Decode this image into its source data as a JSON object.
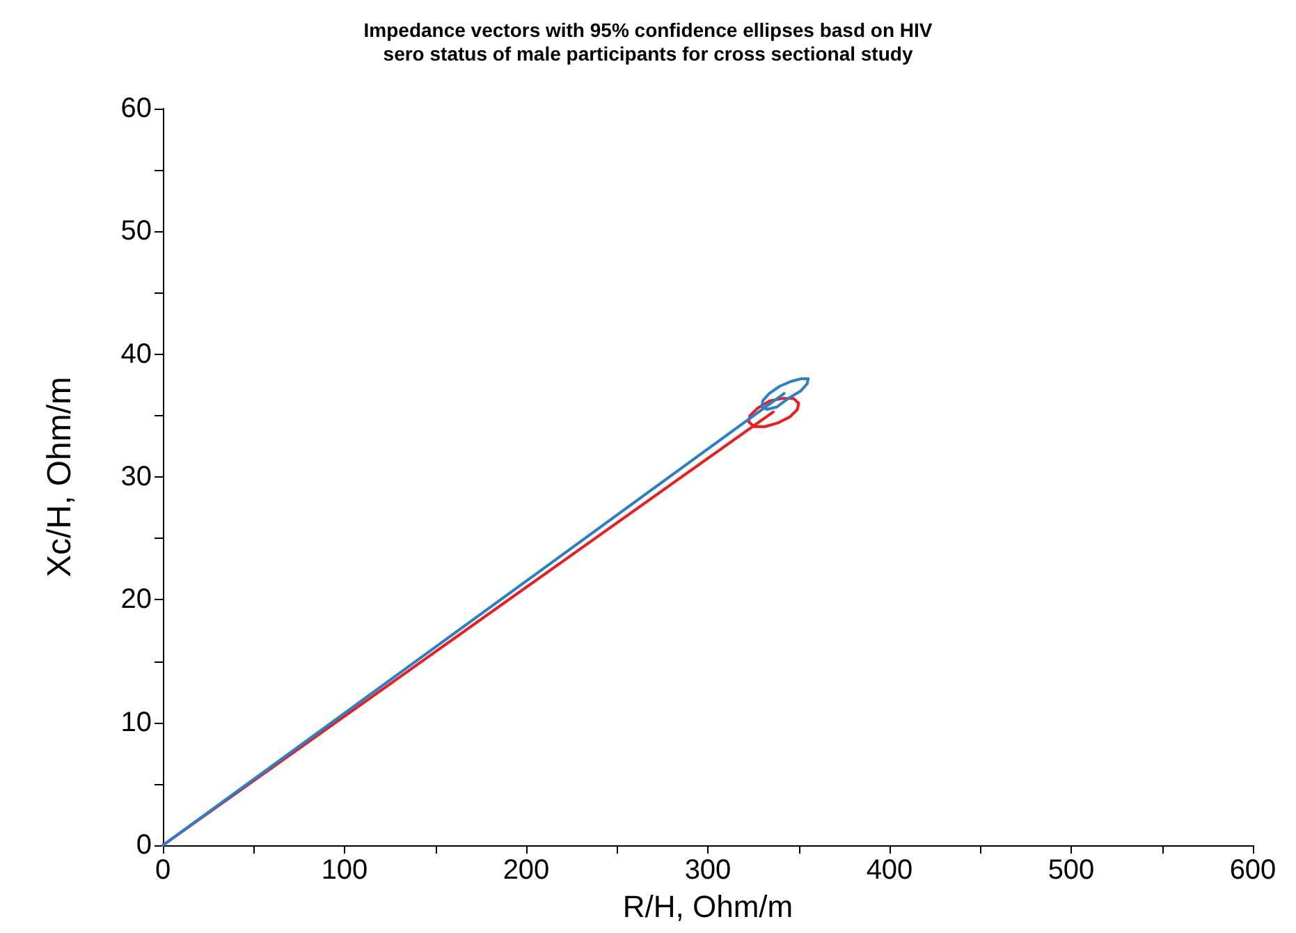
{
  "chart_data": {
    "type": "line",
    "title": "Impedance vectors with 95% confidence ellipses basd on HIV\nsero status of male participants for cross sectional study",
    "xlabel": "R/H, Ohm/m",
    "ylabel": "Xc/H, Ohm/m",
    "xlim": [
      0,
      600
    ],
    "ylim": [
      0,
      60
    ],
    "xticks": [
      0,
      {
        "value": 50,
        "label": null
      },
      100,
      {
        "value": 150,
        "label": null
      },
      200,
      {
        "value": 250,
        "label": null
      },
      300,
      {
        "value": 350,
        "label": null
      },
      400,
      {
        "value": 450,
        "label": null
      },
      500,
      {
        "value": 550,
        "label": null
      },
      600
    ],
    "yticks": [
      0,
      {
        "value": 5,
        "label": null
      },
      10,
      {
        "value": 15,
        "label": null
      },
      20,
      {
        "value": 25,
        "label": null
      },
      30,
      {
        "value": 35,
        "label": null
      },
      40,
      {
        "value": 45,
        "label": null
      },
      50,
      {
        "value": 55,
        "label": null
      },
      60
    ],
    "grid": false,
    "line_style": "solid",
    "series": [
      {
        "color": "#ee1c1c",
        "x": [
          0,
          336
        ],
        "values": [
          0,
          35.3
        ]
      },
      {
        "color": "#ee1c1c",
        "x": [
          322.5,
          323.2,
          327.4,
          334.1,
          341.2,
          347.1,
          350.0
        ],
        "values": [
          34.5,
          35.0,
          35.6,
          36.2,
          36.4,
          36.4,
          36.0
        ]
      },
      {
        "color": "#ee1c1c",
        "x": [
          322.5,
          325.5,
          331.4,
          338.5,
          345.2,
          349.3,
          350.0
        ],
        "values": [
          34.5,
          34.1,
          34.1,
          34.4,
          34.9,
          35.5,
          36.0
        ]
      },
      {
        "color": "#2a7fc9",
        "x": [
          0,
          342
        ],
        "values": [
          0,
          36.8
        ]
      },
      {
        "color": "#2a7fc9",
        "x": [
          329.8,
          330.2,
          333.8,
          339.7,
          346.2,
          351.5,
          355.2
        ],
        "values": [
          35.7,
          36.2,
          36.8,
          37.4,
          37.8,
          38.0,
          38.0
        ]
      },
      {
        "color": "#2a7fc9",
        "x": [
          329.8,
          332.6,
          338.0,
          344.3,
          351.1,
          354.7,
          355.2
        ],
        "values": [
          35.7,
          35.5,
          35.7,
          36.4,
          37.0,
          37.6,
          38.0
        ]
      }
    ]
  }
}
